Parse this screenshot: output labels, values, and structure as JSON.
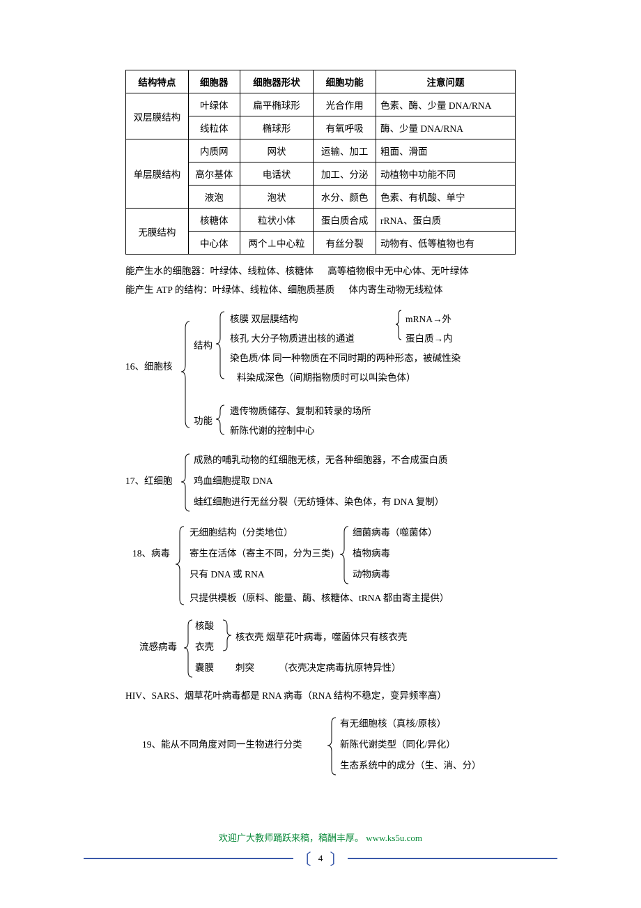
{
  "table": {
    "headers": [
      "结构特点",
      "细胞器",
      "细胞器形状",
      "细胞功能",
      "注意问题"
    ],
    "groups": [
      {
        "label": "双层膜结构",
        "rows": [
          [
            "叶绿体",
            "扁平椭球形",
            "光合作用",
            "色素、酶、少量 DNA/RNA"
          ],
          [
            "线粒体",
            "椭球形",
            "有氧呼吸",
            "酶、少量 DNA/RNA"
          ]
        ]
      },
      {
        "label": "单层膜结构",
        "rows": [
          [
            "内质网",
            "网状",
            "运输、加工",
            "粗面、滑面"
          ],
          [
            "高尔基体",
            "电话状",
            "加工、分泌",
            "动植物中功能不同"
          ],
          [
            "液泡",
            "泡状",
            "水分、颜色",
            "色素、有机酸、单宁"
          ]
        ]
      },
      {
        "label": "无膜结构",
        "rows": [
          [
            "核糖体",
            "粒状小体",
            "蛋白质合成",
            "rRNA、蛋白质"
          ],
          [
            "中心体",
            "两个⊥中心粒",
            "有丝分裂",
            "动物有、低等植物也有"
          ]
        ]
      }
    ]
  },
  "notes": {
    "l1a": "能产生水的细胞器：叶绿体、线粒体、核糖体",
    "l1b": "高等植物根中无中心体、无叶绿体",
    "l2a": "能产生 ATP 的结构：叶绿体、线粒体、细胞质基质",
    "l2b": "体内寄生动物无线粒体"
  },
  "s16": {
    "title": "16、细胞核",
    "struct_label": "结构",
    "func_label": "功能",
    "struct": {
      "a": "核膜    双层膜结构",
      "b": "核孔    大分子物质进出核的通道",
      "b_sub1": "mRNA→外",
      "b_sub2": "蛋白质→内",
      "c1": "染色质/体      同一种物质在不同时期的两种形态，被碱性染",
      "c2": "料染成深色（间期指物质时可以叫染色体）"
    },
    "func": {
      "a": "遗传物质储存、复制和转录的场所",
      "b": "新陈代谢的控制中心"
    }
  },
  "s17": {
    "title": "17、红细胞",
    "a": "成熟的哺乳动物的红细胞无核，无各种细胞器，不合成蛋白质",
    "b": "鸡血细胞提取 DNA",
    "c": "蛙红细胞进行无丝分裂（无纺锤体、染色体，有 DNA 复制）"
  },
  "s18": {
    "title": "18、病毒",
    "a": "无细胞结构（分类地位）",
    "b": "寄生在活体（寄主不同，分为三类)",
    "c": "只有 DNA 或 RNA",
    "d": "只提供模板（原料、能量、酶、核糖体、tRNA 都由寄主提供）",
    "sub1": "细菌病毒（噬菌体）",
    "sub2": "植物病毒",
    "sub3": "动物病毒"
  },
  "flu": {
    "title": "流感病毒",
    "a": "核酸",
    "b": "衣壳",
    "c": "囊膜",
    "d": "刺突",
    "ab_combo": "核衣壳    烟草花叶病毒，噬菌体只有核衣壳",
    "note": "（衣壳决定病毒抗原特异性）"
  },
  "rna_note": "HIV、SARS、烟草花叶病毒都是 RNA 病毒（RNA 结构不稳定，变异频率高）",
  "s19": {
    "title": "19、能从不同角度对同一生物进行分类",
    "a": "有无细胞核（真核/原核）",
    "b": "新陈代谢类型（同化/异化）",
    "c": "生态系统中的成分（生、消、分）"
  },
  "footer": {
    "text": "欢迎广大教师踊跃来稿，稿酬丰厚。",
    "url": "www.ks5u.com",
    "page": "4"
  },
  "colors": {
    "brace": "#000000",
    "footer_green": "#0a8a3a",
    "footer_blue": "#3b5aaa"
  }
}
